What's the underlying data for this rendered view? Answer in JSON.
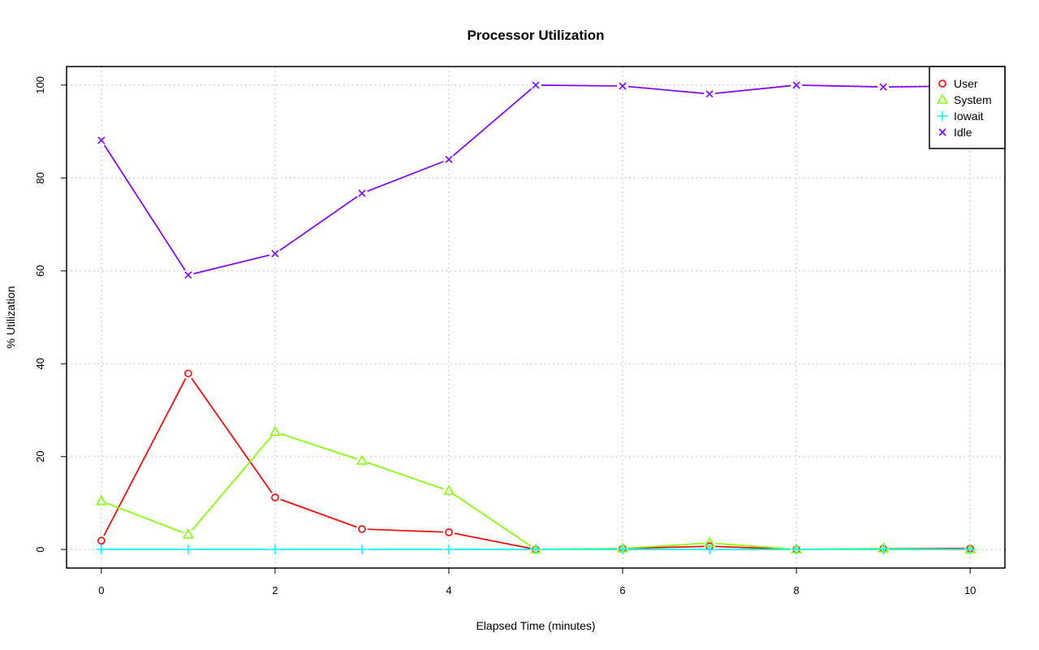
{
  "chart_data": {
    "type": "line",
    "title": "Processor Utilization",
    "xlabel": "Elapsed Time (minutes)",
    "ylabel": "% Utilization",
    "xlim": [
      -0.4,
      10.4
    ],
    "ylim": [
      -4,
      104
    ],
    "xticks": [
      0,
      2,
      4,
      6,
      8,
      10
    ],
    "yticks": [
      0,
      20,
      40,
      60,
      80,
      100
    ],
    "grid": true,
    "legend_position": "top-right",
    "x": [
      0,
      1,
      2,
      3,
      4,
      5,
      6,
      7,
      8,
      9,
      10
    ],
    "series": [
      {
        "name": "User",
        "color": "#ff0000",
        "marker": "circle",
        "values": [
          1.9,
          37.9,
          11.2,
          4.4,
          3.7,
          0.0,
          0.2,
          0.7,
          0.0,
          0.2,
          0.2
        ]
      },
      {
        "name": "System",
        "color": "#80ff00",
        "marker": "triangle",
        "values": [
          10.4,
          3.2,
          25.3,
          19.1,
          12.6,
          0.0,
          0.2,
          1.4,
          0.0,
          0.2,
          0.0
        ]
      },
      {
        "name": "Iowait",
        "color": "#00ffff",
        "marker": "plus",
        "values": [
          0,
          0,
          0,
          0,
          0,
          0,
          0,
          0,
          0,
          0,
          0
        ]
      },
      {
        "name": "Idle",
        "color": "#8000ff",
        "marker": "cross",
        "values": [
          88.1,
          59.1,
          63.7,
          76.7,
          84.0,
          100.0,
          99.8,
          98.1,
          100.0,
          99.6,
          99.8
        ]
      }
    ]
  }
}
